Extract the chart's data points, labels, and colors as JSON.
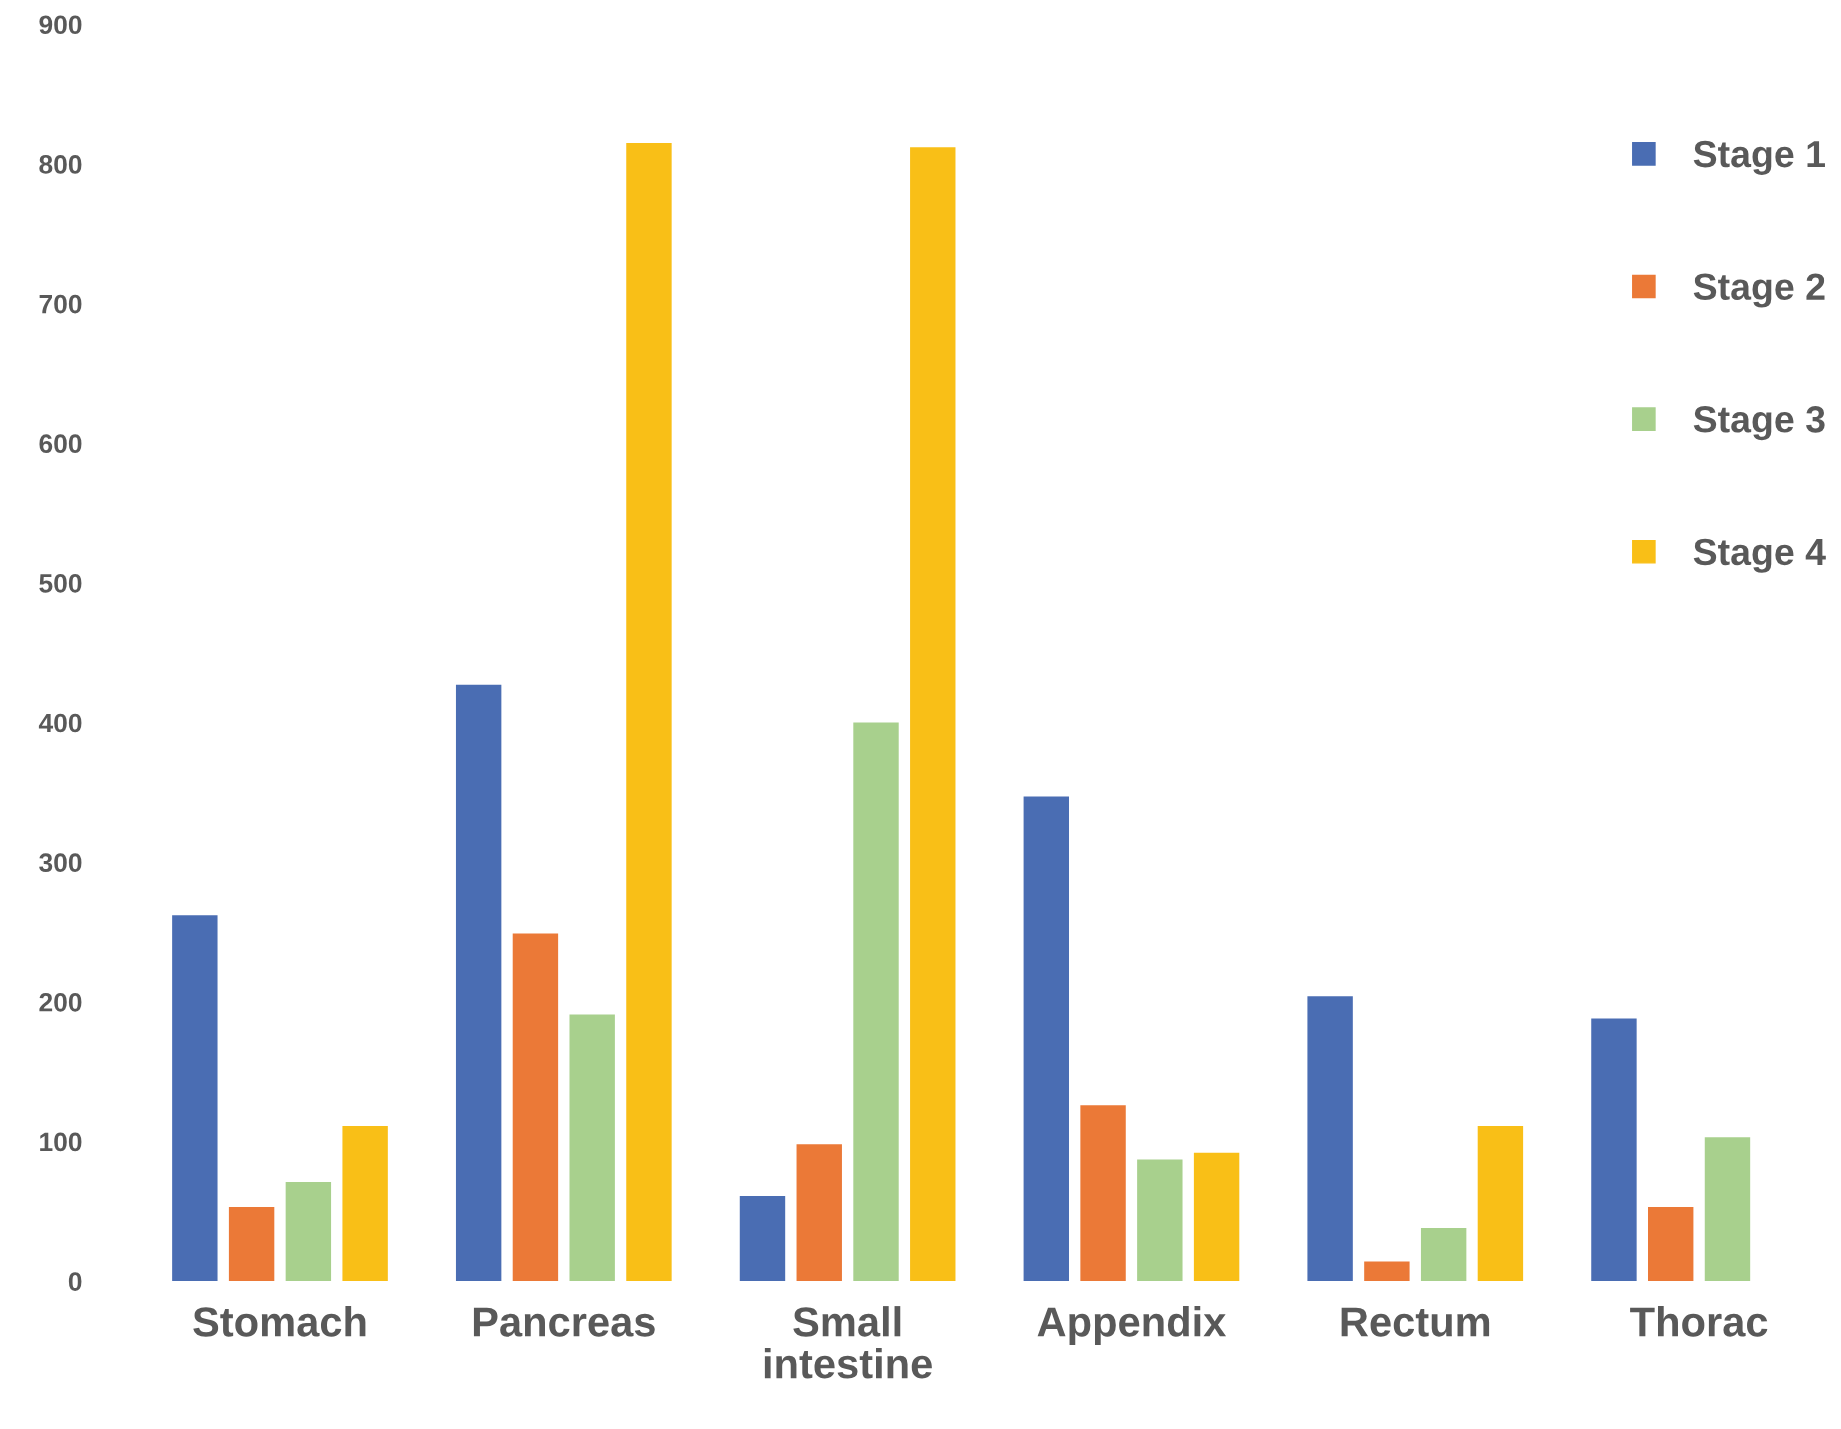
{
  "chart_data": {
    "type": "bar",
    "categories": [
      "Stomach",
      "Pancreas",
      "Small\nintestine",
      "Appendix",
      "Rectum",
      "Thorac"
    ],
    "series": [
      {
        "name": "Stage 1",
        "color": "#4a6db3",
        "values": [
          262,
          427,
          61,
          347,
          204,
          188
        ]
      },
      {
        "name": "Stage 2",
        "color": "#eb7937",
        "values": [
          53,
          249,
          98,
          126,
          14,
          53
        ]
      },
      {
        "name": "Stage 3",
        "color": "#a8d08d",
        "values": [
          71,
          191,
          400,
          87,
          38,
          103
        ]
      },
      {
        "name": "Stage 4",
        "color": "#f9bf17",
        "values": [
          111,
          815,
          812,
          92,
          111,
          null
        ]
      }
    ],
    "ylim": [
      0,
      900
    ],
    "yticks": [
      0,
      100,
      200,
      300,
      400,
      500,
      600,
      700,
      800,
      900
    ],
    "grid": false,
    "legend": "right"
  }
}
